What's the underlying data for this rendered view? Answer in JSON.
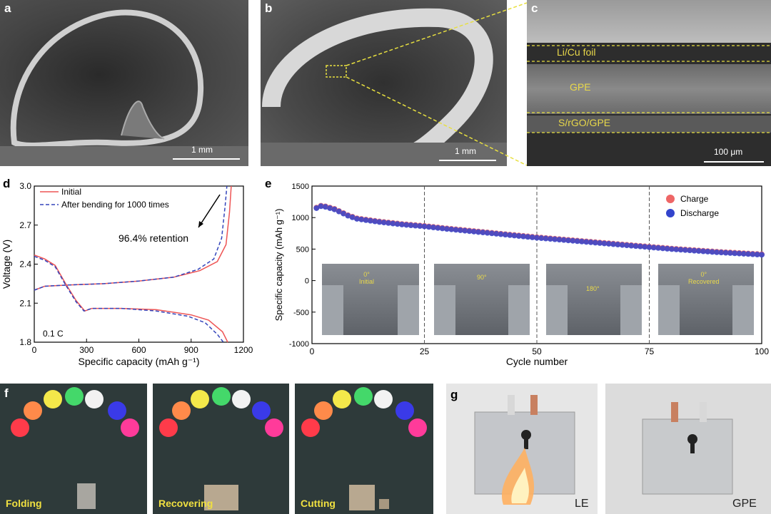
{
  "panels": {
    "a": {
      "label": "a",
      "scale": "1 mm"
    },
    "b": {
      "label": "b",
      "scale": "1 mm"
    },
    "c": {
      "label": "c",
      "scale": "100 μm",
      "layers": [
        "Li/Cu foil",
        "GPE",
        "S/rGO/GPE"
      ]
    },
    "d": {
      "label": "d",
      "note": "0.1 C",
      "annotation": "96.4% retention"
    },
    "e": {
      "label": "e",
      "insets": [
        "0°\nInitial",
        "90°",
        "180°",
        "0°\nRecovered"
      ]
    },
    "f": {
      "label": "f",
      "photos": [
        "Folding",
        "Recovering",
        "Cutting"
      ]
    },
    "g": {
      "label": "g",
      "photos": [
        "LE",
        "GPE"
      ]
    }
  },
  "chart_data": [
    {
      "id": "d",
      "type": "line",
      "xlabel": "Specific capacity (mAh g⁻¹)",
      "ylabel": "Voltage (V)",
      "xlim": [
        0,
        1200
      ],
      "ylim": [
        1.8,
        3.0
      ],
      "xticks": [
        0,
        300,
        600,
        900,
        1200
      ],
      "yticks": [
        1.8,
        2.1,
        2.4,
        2.7,
        3.0
      ],
      "series": [
        {
          "name": "Initial",
          "color": "#ee5555",
          "style": "solid",
          "discharge": [
            [
              0,
              2.47
            ],
            [
              60,
              2.44
            ],
            [
              120,
              2.39
            ],
            [
              180,
              2.25
            ],
            [
              240,
              2.12
            ],
            [
              290,
              2.04
            ],
            [
              330,
              2.06
            ],
            [
              500,
              2.06
            ],
            [
              700,
              2.05
            ],
            [
              900,
              2.01
            ],
            [
              1000,
              1.97
            ],
            [
              1080,
              1.88
            ],
            [
              1110,
              1.8
            ]
          ],
          "charge": [
            [
              0,
              2.2
            ],
            [
              60,
              2.23
            ],
            [
              200,
              2.24
            ],
            [
              400,
              2.25
            ],
            [
              600,
              2.27
            ],
            [
              800,
              2.3
            ],
            [
              950,
              2.35
            ],
            [
              1050,
              2.42
            ],
            [
              1100,
              2.55
            ],
            [
              1120,
              2.8
            ],
            [
              1130,
              3.0
            ]
          ]
        },
        {
          "name": "After bending for 1000 times",
          "color": "#3344bb",
          "style": "dashed",
          "discharge": [
            [
              0,
              2.46
            ],
            [
              60,
              2.43
            ],
            [
              120,
              2.38
            ],
            [
              180,
              2.24
            ],
            [
              240,
              2.11
            ],
            [
              285,
              2.04
            ],
            [
              330,
              2.06
            ],
            [
              500,
              2.06
            ],
            [
              700,
              2.04
            ],
            [
              880,
              2.0
            ],
            [
              980,
              1.95
            ],
            [
              1050,
              1.86
            ],
            [
              1085,
              1.8
            ]
          ],
          "charge": [
            [
              0,
              2.2
            ],
            [
              60,
              2.23
            ],
            [
              200,
              2.24
            ],
            [
              400,
              2.25
            ],
            [
              600,
              2.27
            ],
            [
              800,
              2.3
            ],
            [
              940,
              2.36
            ],
            [
              1030,
              2.44
            ],
            [
              1075,
              2.6
            ],
            [
              1095,
              2.85
            ],
            [
              1105,
              3.0
            ]
          ]
        }
      ]
    },
    {
      "id": "e",
      "type": "scatter",
      "xlabel": "Cycle number",
      "ylabel": "Specific capacity (mAh g⁻¹)",
      "xlim": [
        0,
        100
      ],
      "ylim": [
        -1000,
        1500
      ],
      "xticks": [
        0,
        25,
        50,
        75,
        100
      ],
      "yticks": [
        -1000,
        -500,
        0,
        500,
        1000,
        1500
      ],
      "vlines": [
        25,
        50,
        75
      ],
      "series": [
        {
          "name": "Charge",
          "color": "#ee6666"
        },
        {
          "name": "Discharge",
          "color": "#3344cc"
        }
      ],
      "capacity_points": [
        [
          1,
          1150
        ],
        [
          2,
          1180
        ],
        [
          3,
          1170
        ],
        [
          5,
          1130
        ],
        [
          8,
          1030
        ],
        [
          10,
          980
        ],
        [
          15,
          930
        ],
        [
          20,
          890
        ],
        [
          25,
          860
        ],
        [
          30,
          820
        ],
        [
          40,
          750
        ],
        [
          50,
          680
        ],
        [
          60,
          620
        ],
        [
          70,
          560
        ],
        [
          75,
          530
        ],
        [
          80,
          500
        ],
        [
          90,
          450
        ],
        [
          100,
          410
        ]
      ]
    }
  ]
}
